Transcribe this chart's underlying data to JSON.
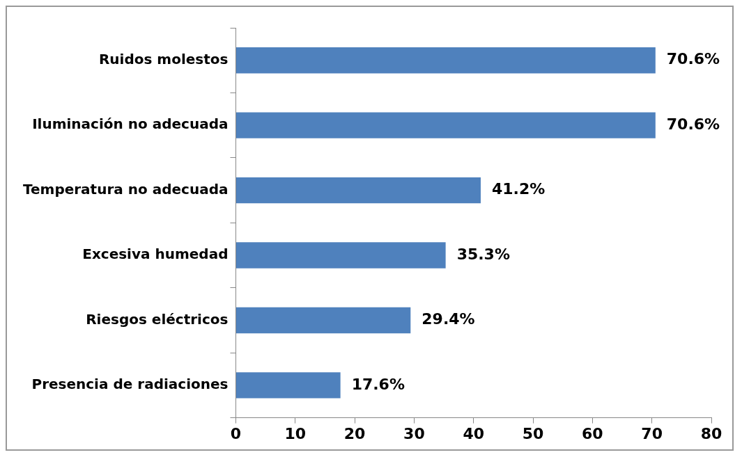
{
  "chart_data": {
    "type": "bar",
    "orientation": "horizontal",
    "categories": [
      "Ruidos molestos",
      "Iluminación no adecuada",
      "Temperatura no adecuada",
      "Excesiva humedad",
      "Riesgos eléctricos",
      "Presencia de radiaciones"
    ],
    "values": [
      70.6,
      70.6,
      41.2,
      35.3,
      29.4,
      17.6
    ],
    "value_labels": [
      "70.6%",
      "70.6%",
      "41.2%",
      "35.3%",
      "29.4%",
      "17.6%"
    ],
    "color": "#4f81bd",
    "xlim": [
      0,
      80
    ],
    "xticks": [
      0,
      10,
      20,
      30,
      40,
      50,
      60,
      70,
      80
    ],
    "grid": false,
    "legend": false
  }
}
